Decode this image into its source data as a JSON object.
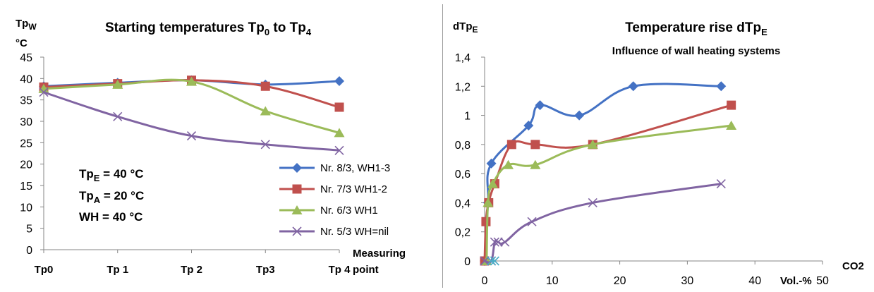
{
  "chart_data": [
    {
      "type": "line",
      "title": "Starting temperatures Tp0 to Tp4",
      "ylabel": "TpW\n°C",
      "xlabel": "Measuring point",
      "categories": [
        "Tp0",
        "Tp 1",
        "Tp 2",
        "Tp3",
        "Tp 4"
      ],
      "ylim": [
        0,
        45
      ],
      "yticks": [
        "0",
        "5",
        "10",
        "15",
        "20",
        "25",
        "30",
        "35",
        "40",
        "45"
      ],
      "grid": false,
      "legend_position": "bottom-right",
      "annotations": [
        "TpE = 40 °C",
        "TpA = 20 °C",
        "WH = 40 °C"
      ],
      "series": [
        {
          "name": "Nr. 8/3, WH1-3",
          "color": "#4472C4",
          "marker": "diamond",
          "values": [
            38.2,
            39.0,
            39.6,
            38.6,
            39.4
          ]
        },
        {
          "name": "Nr. 7/3 WH1-2",
          "color": "#C0504D",
          "marker": "square",
          "values": [
            38.0,
            38.8,
            39.6,
            38.2,
            33.3
          ]
        },
        {
          "name": "Nr. 6/3 WH1",
          "color": "#9BBB59",
          "marker": "triangle",
          "values": [
            37.6,
            38.6,
            39.3,
            32.4,
            27.3
          ]
        },
        {
          "name": "Nr. 5/3 WH=nil",
          "color": "#8064A2",
          "marker": "x",
          "values": [
            36.8,
            31.1,
            26.6,
            24.6,
            23.2
          ]
        }
      ]
    },
    {
      "type": "scatter",
      "title": "Temperature rise dTpE",
      "subtitle": "Influence of wall heating systems",
      "ylabel": "dTpE",
      "xlabel": "Vol.-%",
      "xlabel2": "CO2",
      "xlim": [
        0,
        50
      ],
      "ylim": [
        0,
        1.4
      ],
      "xticks": [
        "0",
        "10",
        "20",
        "30",
        "40",
        "50"
      ],
      "yticks": [
        "0",
        "0,2",
        "0,4",
        "0,6",
        "0,8",
        "1",
        "1,2",
        "1,4"
      ],
      "grid": false,
      "series": [
        {
          "name": "Nr. 8/3, WH1-3",
          "color": "#4472C4",
          "marker": "diamond",
          "x": [
            0,
            0.5,
            1,
            6.5,
            8.2,
            14,
            22,
            35
          ],
          "y": [
            0,
            0.4,
            0.67,
            0.93,
            1.07,
            1.0,
            1.2,
            1.2
          ]
        },
        {
          "name": "Nr. 7/3 WH1-2",
          "color": "#C0504D",
          "marker": "square",
          "x": [
            0,
            0.2,
            0.6,
            1.5,
            4,
            7.5,
            16,
            36.5
          ],
          "y": [
            0,
            0.27,
            0.4,
            0.53,
            0.8,
            0.8,
            0.8,
            1.07
          ]
        },
        {
          "name": "Nr. 6/3 WH1",
          "color": "#9BBB59",
          "marker": "triangle",
          "x": [
            0.3,
            0.5,
            1.2,
            3.5,
            7.5,
            16,
            36.5
          ],
          "y": [
            0,
            0.4,
            0.53,
            0.66,
            0.66,
            0.8,
            0.93
          ]
        },
        {
          "name": "Nr. 5/3 WH=nil",
          "color": "#8064A2",
          "marker": "x",
          "x": [
            0,
            1,
            1.5,
            2,
            3,
            7,
            16,
            35
          ],
          "y": [
            0,
            0,
            0.13,
            0.13,
            0.13,
            0.27,
            0.4,
            0.53
          ]
        },
        {
          "name": "",
          "color": "#4BACC6",
          "marker": "x",
          "x": [
            1,
            1.5
          ],
          "y": [
            0,
            0
          ]
        }
      ]
    }
  ]
}
